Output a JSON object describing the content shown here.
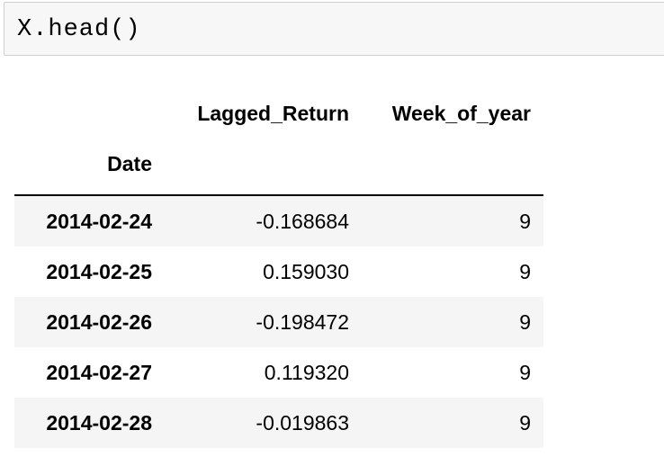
{
  "code_cell": {
    "source": "X.head()"
  },
  "dataframe": {
    "columns": [
      "Lagged_Return",
      "Week_of_year"
    ],
    "index_name": "Date",
    "rows": [
      {
        "date": "2014-02-24",
        "lagged_return": "-0.168684",
        "week_of_year": "9"
      },
      {
        "date": "2014-02-25",
        "lagged_return": "0.159030",
        "week_of_year": "9"
      },
      {
        "date": "2014-02-26",
        "lagged_return": "-0.198472",
        "week_of_year": "9"
      },
      {
        "date": "2014-02-27",
        "lagged_return": "0.119320",
        "week_of_year": "9"
      },
      {
        "date": "2014-02-28",
        "lagged_return": "-0.019863",
        "week_of_year": "9"
      }
    ]
  },
  "colors": {
    "code_background": "#f7f7f7",
    "code_border": "#cfcfcf",
    "stripe": "#f5f5f5"
  }
}
